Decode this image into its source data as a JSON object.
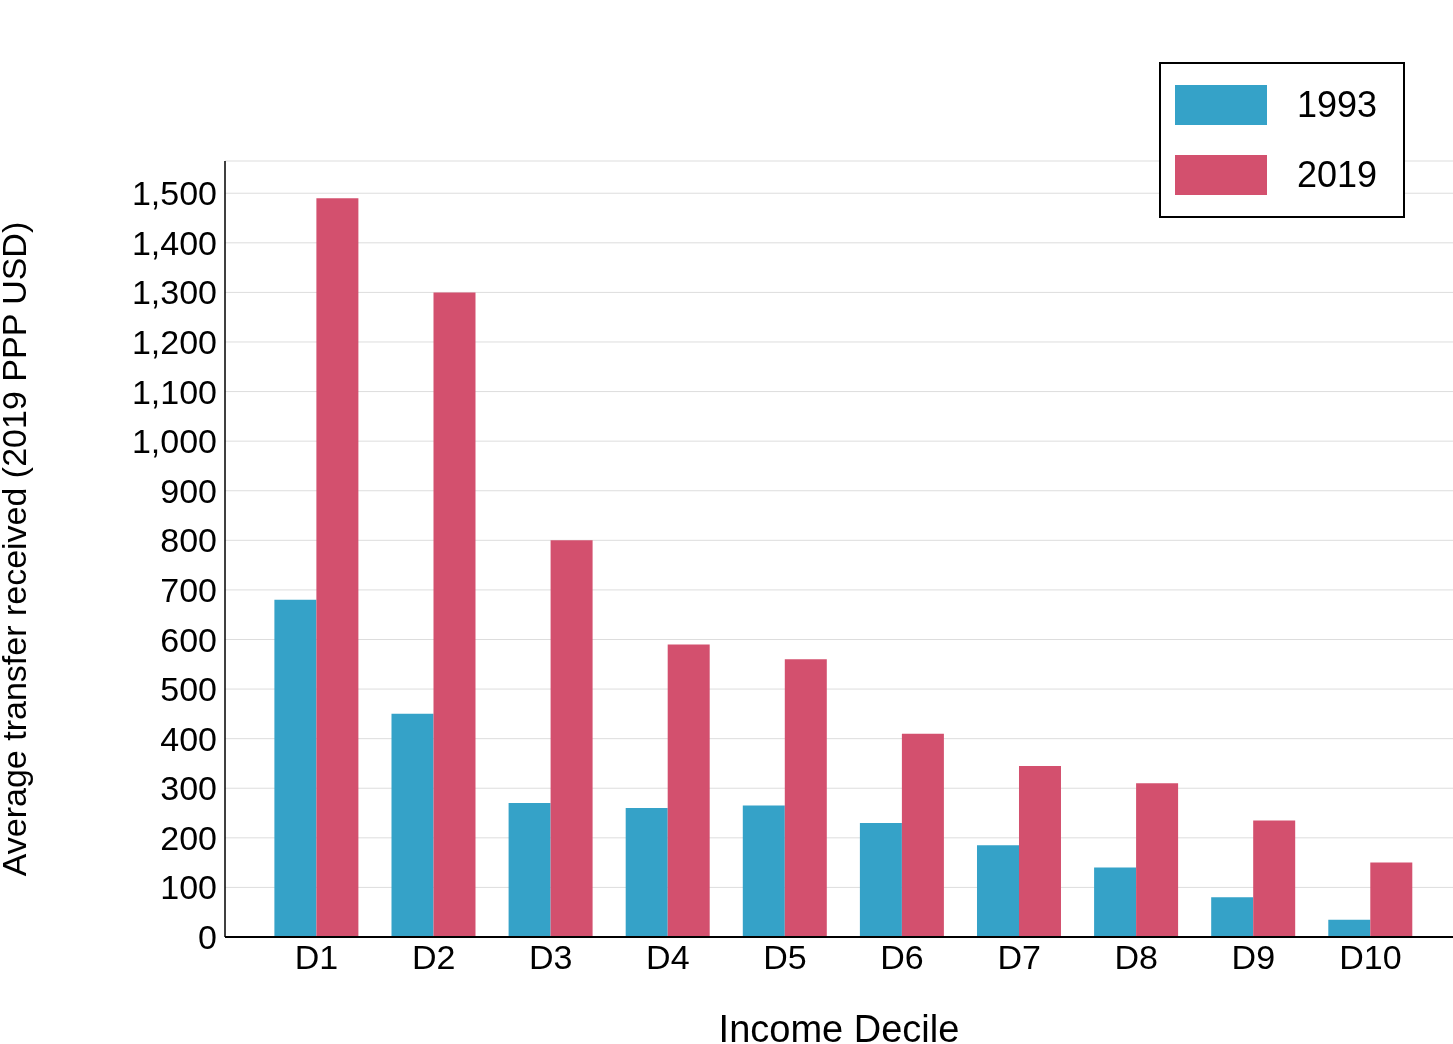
{
  "chart_data": {
    "type": "bar",
    "xlabel": "Income Decile",
    "ylabel": "Average transfer received (2019 PPP USD)",
    "categories": [
      "D1",
      "D2",
      "D3",
      "D4",
      "D5",
      "D6",
      "D7",
      "D8",
      "D9",
      "D10"
    ],
    "series": [
      {
        "name": "1993",
        "color": "#35a2c8",
        "values": [
          680,
          450,
          270,
          260,
          265,
          230,
          185,
          140,
          80,
          35
        ]
      },
      {
        "name": "2019",
        "color": "#d3506e",
        "values": [
          1490,
          1300,
          800,
          590,
          560,
          410,
          345,
          310,
          235,
          150
        ]
      }
    ],
    "ylim": [
      0,
      1565
    ],
    "yticks": [
      {
        "value": 0,
        "label": "0"
      },
      {
        "value": 100,
        "label": "100"
      },
      {
        "value": 200,
        "label": "200"
      },
      {
        "value": 300,
        "label": "300"
      },
      {
        "value": 400,
        "label": "400"
      },
      {
        "value": 500,
        "label": "500"
      },
      {
        "value": 600,
        "label": "600"
      },
      {
        "value": 700,
        "label": "700"
      },
      {
        "value": 800,
        "label": "800"
      },
      {
        "value": 900,
        "label": "900"
      },
      {
        "value": 1000,
        "label": "1,000"
      },
      {
        "value": 1100,
        "label": "1,100"
      },
      {
        "value": 1200,
        "label": "1,200"
      },
      {
        "value": 1300,
        "label": "1,300"
      },
      {
        "value": 1400,
        "label": "1,400"
      },
      {
        "value": 1500,
        "label": "1,500"
      }
    ],
    "grid": "y",
    "legend": "top right"
  }
}
